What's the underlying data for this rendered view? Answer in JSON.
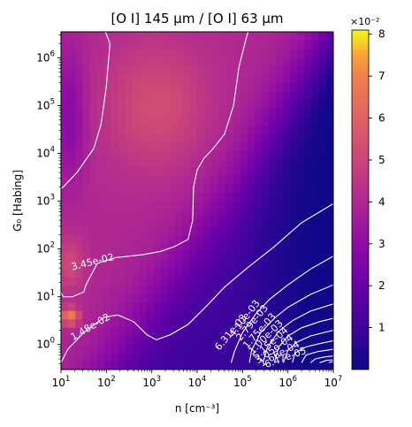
{
  "chart_data": {
    "type": "heatmap",
    "title": "[O I] 145 μm / [O I] 63 μm",
    "xlabel": "n [cm⁻³]",
    "ylabel": "G₀ [Habing]",
    "x_scale": "log",
    "y_scale": "log",
    "xlim": [
      10,
      10000000
    ],
    "ylim": [
      0.3,
      3500000
    ],
    "x_ticks": [
      {
        "value": 10,
        "mant": "10",
        "exp": "1"
      },
      {
        "value": 100,
        "mant": "10",
        "exp": "2"
      },
      {
        "value": 1000,
        "mant": "10",
        "exp": "3"
      },
      {
        "value": 10000,
        "mant": "10",
        "exp": "4"
      },
      {
        "value": 100000,
        "mant": "10",
        "exp": "5"
      },
      {
        "value": 1000000,
        "mant": "10",
        "exp": "6"
      },
      {
        "value": 10000000,
        "mant": "10",
        "exp": "7"
      }
    ],
    "y_ticks": [
      {
        "value": 1,
        "mant": "10",
        "exp": "0"
      },
      {
        "value": 10,
        "mant": "10",
        "exp": "1"
      },
      {
        "value": 100,
        "mant": "10",
        "exp": "2"
      },
      {
        "value": 1000,
        "mant": "10",
        "exp": "3"
      },
      {
        "value": 10000,
        "mant": "10",
        "exp": "4"
      },
      {
        "value": 100000,
        "mant": "10",
        "exp": "5"
      },
      {
        "value": 1000000,
        "mant": "10",
        "exp": "6"
      }
    ],
    "colormap": "plasma",
    "colorbar": {
      "min": 0.0,
      "max": 0.081,
      "multiplier": "×10⁻²",
      "ticks": [
        {
          "value": 0.01,
          "label": "1"
        },
        {
          "value": 0.02,
          "label": "2"
        },
        {
          "value": 0.03,
          "label": "3"
        },
        {
          "value": 0.04,
          "label": "4"
        },
        {
          "value": 0.05,
          "label": "5"
        },
        {
          "value": 0.06,
          "label": "6"
        },
        {
          "value": 0.07,
          "label": "7"
        },
        {
          "value": 0.08,
          "label": "8"
        }
      ]
    },
    "contours": [
      {
        "level": "3.45e-02",
        "points": [
          [
            1.98,
            6.54
          ],
          [
            2.08,
            6.3
          ],
          [
            2.0,
            5.4
          ],
          [
            1.88,
            4.6
          ],
          [
            1.72,
            4.1
          ],
          [
            1.35,
            3.6
          ],
          [
            1.05,
            3.3
          ],
          [
            0.75,
            3.1
          ],
          [
            0.55,
            3.0
          ],
          [
            0.55,
            2.0
          ],
          [
            0.62,
            1.6
          ],
          [
            0.75,
            1.45
          ],
          [
            0.9,
            1.28
          ],
          [
            1.05,
            1.0
          ],
          [
            1.25,
            1.0
          ],
          [
            1.5,
            1.1
          ],
          [
            1.55,
            1.25
          ],
          [
            1.8,
            1.7
          ],
          [
            2.2,
            1.82
          ],
          [
            2.8,
            1.88
          ],
          [
            3.2,
            1.95
          ],
          [
            3.5,
            2.05
          ],
          [
            3.8,
            2.2
          ],
          [
            3.9,
            2.6
          ],
          [
            3.92,
            3.3
          ],
          [
            4.0,
            3.65
          ],
          [
            4.15,
            3.9
          ],
          [
            4.35,
            4.1
          ],
          [
            4.6,
            4.4
          ],
          [
            4.8,
            5.0
          ],
          [
            4.92,
            5.8
          ],
          [
            5.05,
            6.3
          ],
          [
            5.12,
            6.54
          ]
        ]
      },
      {
        "level": "1.48e-02",
        "points": [
          [
            1.0,
            -0.38
          ],
          [
            1.15,
            -0.1
          ],
          [
            1.5,
            0.25
          ],
          [
            1.95,
            0.57
          ],
          [
            2.25,
            0.62
          ],
          [
            2.6,
            0.48
          ],
          [
            2.9,
            0.2
          ],
          [
            3.1,
            0.1
          ],
          [
            3.4,
            0.2
          ],
          [
            3.8,
            0.42
          ],
          [
            4.2,
            0.8
          ],
          [
            4.6,
            1.2
          ],
          [
            5.1,
            1.6
          ],
          [
            5.7,
            2.05
          ],
          [
            6.3,
            2.55
          ],
          [
            7.0,
            2.95
          ]
        ]
      },
      {
        "level": "6.31e-03",
        "points": [
          [
            4.75,
            -0.38
          ],
          [
            4.82,
            -0.15
          ],
          [
            5.0,
            0.25
          ],
          [
            5.3,
            0.65
          ],
          [
            5.6,
            0.95
          ],
          [
            6.0,
            1.25
          ],
          [
            6.5,
            1.58
          ],
          [
            7.0,
            1.85
          ]
        ]
      },
      {
        "level": "4.10e-03",
        "points": [
          [
            5.15,
            -0.38
          ],
          [
            5.2,
            -0.12
          ],
          [
            5.4,
            0.25
          ],
          [
            5.7,
            0.55
          ],
          [
            6.0,
            0.78
          ],
          [
            6.5,
            1.05
          ],
          [
            7.0,
            1.25
          ]
        ]
      },
      {
        "level": "2.79e-03",
        "points": [
          [
            5.45,
            -0.38
          ],
          [
            5.55,
            -0.05
          ],
          [
            5.8,
            0.28
          ],
          [
            6.1,
            0.5
          ],
          [
            6.5,
            0.7
          ],
          [
            7.0,
            0.85
          ]
        ]
      },
      {
        "level": "1.75e-03",
        "points": [
          [
            5.7,
            -0.38
          ],
          [
            5.8,
            -0.05
          ],
          [
            6.0,
            0.18
          ],
          [
            6.3,
            0.35
          ],
          [
            6.7,
            0.48
          ],
          [
            7.0,
            0.55
          ]
        ]
      },
      {
        "level": "1.00e-03",
        "points": [
          [
            5.9,
            -0.38
          ],
          [
            6.0,
            -0.12
          ],
          [
            6.2,
            0.05
          ],
          [
            6.5,
            0.18
          ],
          [
            7.0,
            0.3
          ]
        ]
      },
      {
        "level": "5.15e-04",
        "points": [
          [
            6.1,
            -0.38
          ],
          [
            6.15,
            -0.18
          ],
          [
            6.4,
            -0.05
          ],
          [
            6.7,
            0.02
          ],
          [
            7.0,
            0.08
          ]
        ]
      },
      {
        "level": "3.05e-04",
        "points": [
          [
            6.3,
            -0.38
          ],
          [
            6.4,
            -0.22
          ],
          [
            6.65,
            -0.15
          ],
          [
            7.0,
            -0.1
          ]
        ]
      },
      {
        "level": "1.66e-04",
        "points": [
          [
            6.5,
            -0.38
          ],
          [
            6.6,
            -0.3
          ],
          [
            6.8,
            -0.26
          ],
          [
            7.0,
            -0.24
          ]
        ]
      },
      {
        "level": "6.47e-05",
        "points": [
          [
            6.7,
            -0.38
          ],
          [
            6.85,
            -0.33
          ],
          [
            7.0,
            -0.32
          ]
        ]
      },
      {
        "level": "1.66e-05",
        "points": [
          [
            6.9,
            -0.38
          ],
          [
            6.95,
            -0.36
          ],
          [
            7.0,
            -0.36
          ]
        ]
      }
    ],
    "contour_labels": [
      {
        "text": "3.45e-02",
        "x": 0.55,
        "y": 4.7,
        "angle": -76
      },
      {
        "text": "3.45e-02",
        "x": 1.7,
        "y": 1.72,
        "angle": -14
      },
      {
        "text": "1.48e-02",
        "x": 1.65,
        "y": 0.36,
        "angle": -30
      },
      {
        "text": "6.31e-03",
        "x": 4.75,
        "y": 0.25,
        "angle": -50
      },
      {
        "text": "4.10e-03",
        "x": 5.05,
        "y": 0.54,
        "angle": -52
      },
      {
        "text": "2.79e-03",
        "x": 5.22,
        "y": 0.45,
        "angle": -50
      },
      {
        "text": "1.75e-03",
        "x": 5.38,
        "y": 0.28,
        "angle": -48
      },
      {
        "text": "1.00e-03",
        "x": 5.52,
        "y": 0.15,
        "angle": -45
      },
      {
        "text": "5.15e-04",
        "x": 5.62,
        "y": 0.02,
        "angle": -42
      },
      {
        "text": "3.05e-04",
        "x": 5.7,
        "y": -0.1,
        "angle": -35
      },
      {
        "text": "1.66e-04",
        "x": 5.82,
        "y": -0.2,
        "angle": -28
      },
      {
        "text": "6.47e-05",
        "x": 5.95,
        "y": -0.28,
        "angle": -20
      }
    ]
  }
}
